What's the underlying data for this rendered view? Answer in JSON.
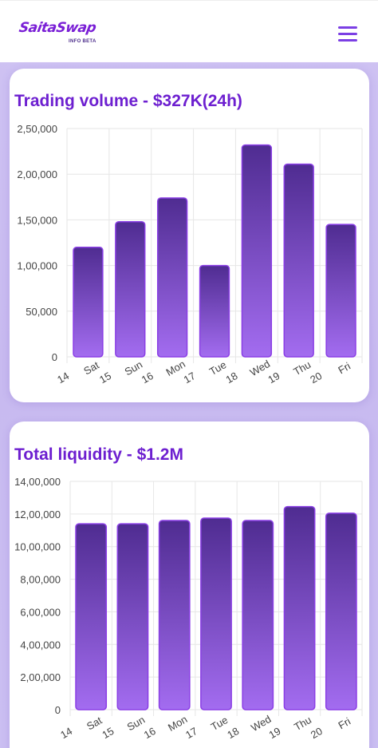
{
  "brand": {
    "logo_text": "SaitaSwap",
    "logo_sub": "INFO BETA"
  },
  "header": {
    "menu_icon": "hamburger-menu-icon"
  },
  "colors": {
    "accent": "#7a1fd6",
    "bar_top": "#4f2c91",
    "bar_bottom": "#a36cf0",
    "bar_stroke": "#8b3fe6"
  },
  "cards": [
    {
      "title": "Trading volume - $327K(24h)"
    },
    {
      "title": "Total liquidity - $1.2M"
    }
  ],
  "chart_data": [
    {
      "type": "bar",
      "title": "Trading volume - $327K(24h)",
      "categories": [
        "Sat",
        "Sun",
        "Mon",
        "Tue",
        "Wed",
        "Thu",
        "Fri"
      ],
      "x_ticks": [
        "14",
        "Sat",
        "15",
        "Sun",
        "16",
        "Mon",
        "17",
        "Tue",
        "18",
        "Wed",
        "19",
        "Thu",
        "20",
        "Fri"
      ],
      "values": [
        120000,
        148000,
        174000,
        100000,
        232000,
        211000,
        145000
      ],
      "y_ticks": [
        "0",
        "50,000",
        "1,00,000",
        "1,50,000",
        "2,00,000",
        "2,50,000"
      ],
      "ylim": [
        0,
        250000
      ],
      "grid": true
    },
    {
      "type": "bar",
      "title": "Total liquidity - $1.2M",
      "categories": [
        "Sat",
        "Sun",
        "Mon",
        "Tue",
        "Wed",
        "Thu",
        "Fri"
      ],
      "x_ticks": [
        "14",
        "Sat",
        "15",
        "Sun",
        "16",
        "Mon",
        "17",
        "Tue",
        "18",
        "Wed",
        "19",
        "Thu",
        "20",
        "Fri"
      ],
      "values": [
        1140000,
        1140000,
        1160000,
        1175000,
        1160000,
        1245000,
        1205000
      ],
      "y_ticks": [
        "0",
        "2,00,000",
        "4,00,000",
        "6,00,000",
        "8,00,000",
        "10,00,000",
        "12,00,000",
        "14,00,000"
      ],
      "ylim": [
        0,
        1400000
      ],
      "grid": true
    }
  ]
}
